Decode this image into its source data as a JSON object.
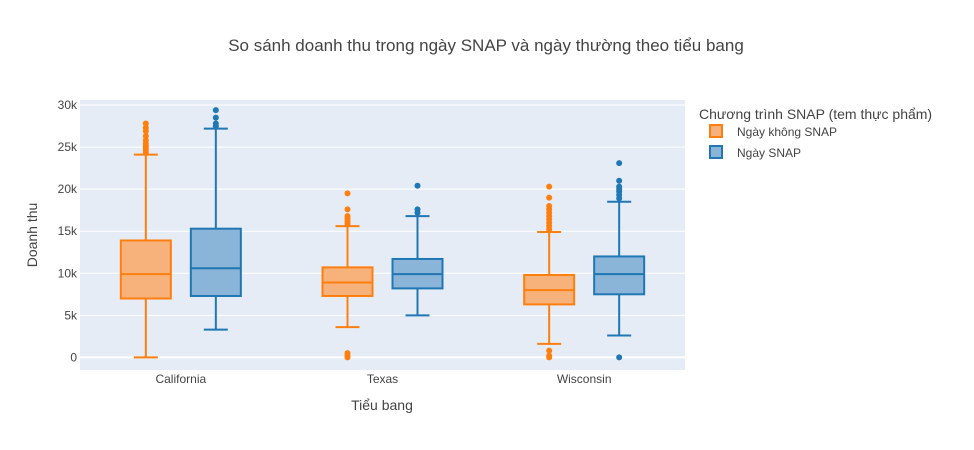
{
  "chart_data": {
    "type": "box",
    "title": "So sánh doanh thu trong ngày SNAP và ngày thường theo tiểu bang",
    "xlabel": "Tiểu bang",
    "ylabel": "Doanh thu",
    "categories": [
      "California",
      "Texas",
      "Wisconsin"
    ],
    "ylim": [
      -1500,
      30600
    ],
    "yticks": [
      0,
      5000,
      10000,
      15000,
      20000,
      25000,
      30000
    ],
    "ytick_labels": [
      "0",
      "5k",
      "10k",
      "15k",
      "20k",
      "25k",
      "30k"
    ],
    "grid": true,
    "legend": {
      "title": "Chương trình SNAP (tem thực phẩm)",
      "placement": "right"
    },
    "series": [
      {
        "name": "Ngày không SNAP",
        "color": "#ff7f0e",
        "fill": "#f7b27c",
        "boxes": [
          {
            "min": 0,
            "q1": 7000,
            "median": 9900,
            "q3": 13900,
            "max": 24100,
            "outliers": [
              24300,
              24600,
              24900,
              25100,
              25400,
              25800,
              26300,
              26900,
              27300,
              27800
            ]
          },
          {
            "min": 3600,
            "q1": 7300,
            "median": 8900,
            "q3": 10700,
            "max": 15600,
            "outliers": [
              0,
              200,
              500,
              15900,
              16200,
              16500,
              16800,
              17600,
              19500
            ]
          },
          {
            "min": 1600,
            "q1": 6300,
            "median": 8000,
            "q3": 9800,
            "max": 14900,
            "outliers": [
              0,
              200,
              800,
              15200,
              15600,
              16000,
              16400,
              16800,
              17200,
              17600,
              18000,
              19000,
              20300
            ]
          }
        ]
      },
      {
        "name": "Ngày SNAP",
        "color": "#1f77b4",
        "fill": "#8ab4d8",
        "boxes": [
          {
            "min": 3300,
            "q1": 7300,
            "median": 10600,
            "q3": 15300,
            "max": 27200,
            "outliers": [
              27500,
              27800,
              28500,
              29400
            ]
          },
          {
            "min": 5000,
            "q1": 8200,
            "median": 9900,
            "q3": 11700,
            "max": 16800,
            "outliers": [
              17200,
              17600,
              20400
            ]
          },
          {
            "min": 2600,
            "q1": 7500,
            "median": 9900,
            "q3": 12000,
            "max": 18500,
            "outliers": [
              0,
              18900,
              19300,
              19700,
              20000,
              20300,
              21000,
              23100
            ]
          }
        ]
      }
    ]
  }
}
